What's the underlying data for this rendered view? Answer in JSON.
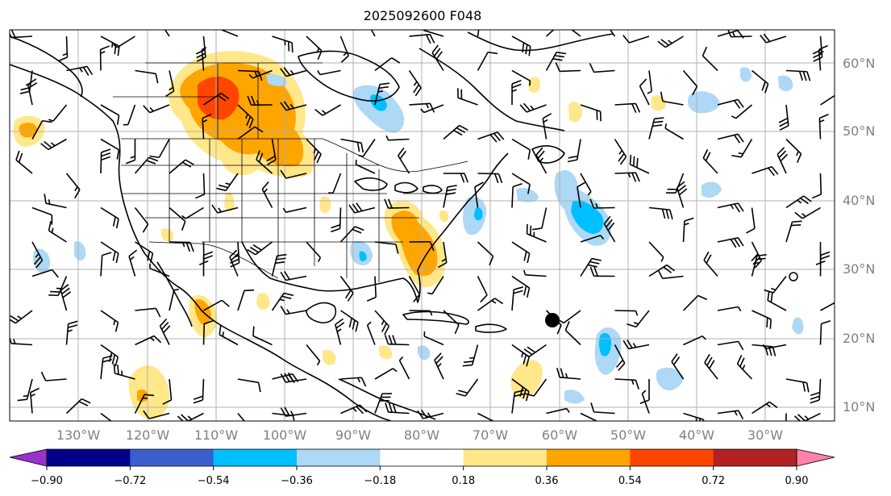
{
  "title": "2025092600 F048",
  "lat_labels": [
    "60°N",
    "50°N",
    "40°N",
    "30°N",
    "20°N",
    "10°N"
  ],
  "lon_labels": [
    "130°W",
    "120°W",
    "110°W",
    "100°W",
    "90°W",
    "80°W",
    "70°W",
    "60°W",
    "50°W",
    "40°W",
    "30°W"
  ],
  "colorbar": {
    "ticks": [
      "−0.90",
      "−0.72",
      "−0.54",
      "−0.36",
      "−0.18",
      "0.18",
      "0.36",
      "0.54",
      "0.72",
      "0.90"
    ],
    "colors": {
      "under": "#9932cc",
      "bins": [
        "#00008b",
        "#3a5fcd",
        "#00bfff",
        "#add8f6",
        "#ffffff",
        "#ffe78a",
        "#ffa500",
        "#ff4500",
        "#b22222"
      ],
      "over": "#ff82ab"
    }
  },
  "map": {
    "projection": "plate-carree",
    "extent_lon": [
      -140,
      -20
    ],
    "extent_lat": [
      7,
      64
    ],
    "features": [
      "coastlines",
      "country-borders",
      "state-borders",
      "wind-barbs",
      "shaded-anomaly-field",
      "storm-center-marker"
    ]
  }
}
